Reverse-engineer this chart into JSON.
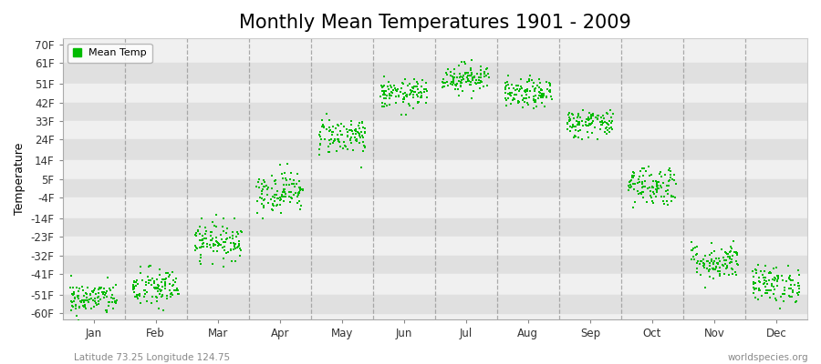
{
  "title": "Monthly Mean Temperatures 1901 - 2009",
  "ylabel": "Temperature",
  "xlabel": "",
  "latitude_label": "Latitude 73.25 Longitude 124.75",
  "watermark": "worldspecies.org",
  "legend_label": "Mean Temp",
  "months": [
    "Jan",
    "Feb",
    "Mar",
    "Apr",
    "May",
    "Jun",
    "Jul",
    "Aug",
    "Sep",
    "Oct",
    "Nov",
    "Dec"
  ],
  "month_centers": [
    1,
    2,
    3,
    4,
    5,
    6,
    7,
    8,
    9,
    10,
    11,
    12
  ],
  "yticks": [
    70,
    61,
    51,
    42,
    33,
    24,
    14,
    5,
    -4,
    -14,
    -23,
    -32,
    -41,
    -51,
    -60
  ],
  "ylim": [
    -63,
    73
  ],
  "xlim": [
    0.5,
    12.5
  ],
  "dot_color": "#00bb00",
  "dot_size": 4,
  "background_color": "#ffffff",
  "plot_bg_light": "#f0f0f0",
  "plot_bg_dark": "#e0e0e0",
  "vline_color": "#999999",
  "title_fontsize": 15,
  "axis_label_fontsize": 9,
  "tick_label_fontsize": 8.5,
  "n_years": 109,
  "monthly_means": [
    -53,
    -48,
    -25,
    -1,
    26,
    46,
    54,
    46,
    32,
    2,
    -35,
    -46
  ],
  "monthly_stds": [
    4,
    5,
    4.5,
    5,
    4.5,
    3.5,
    3.5,
    3.5,
    3.5,
    5,
    4.5,
    4.5
  ]
}
